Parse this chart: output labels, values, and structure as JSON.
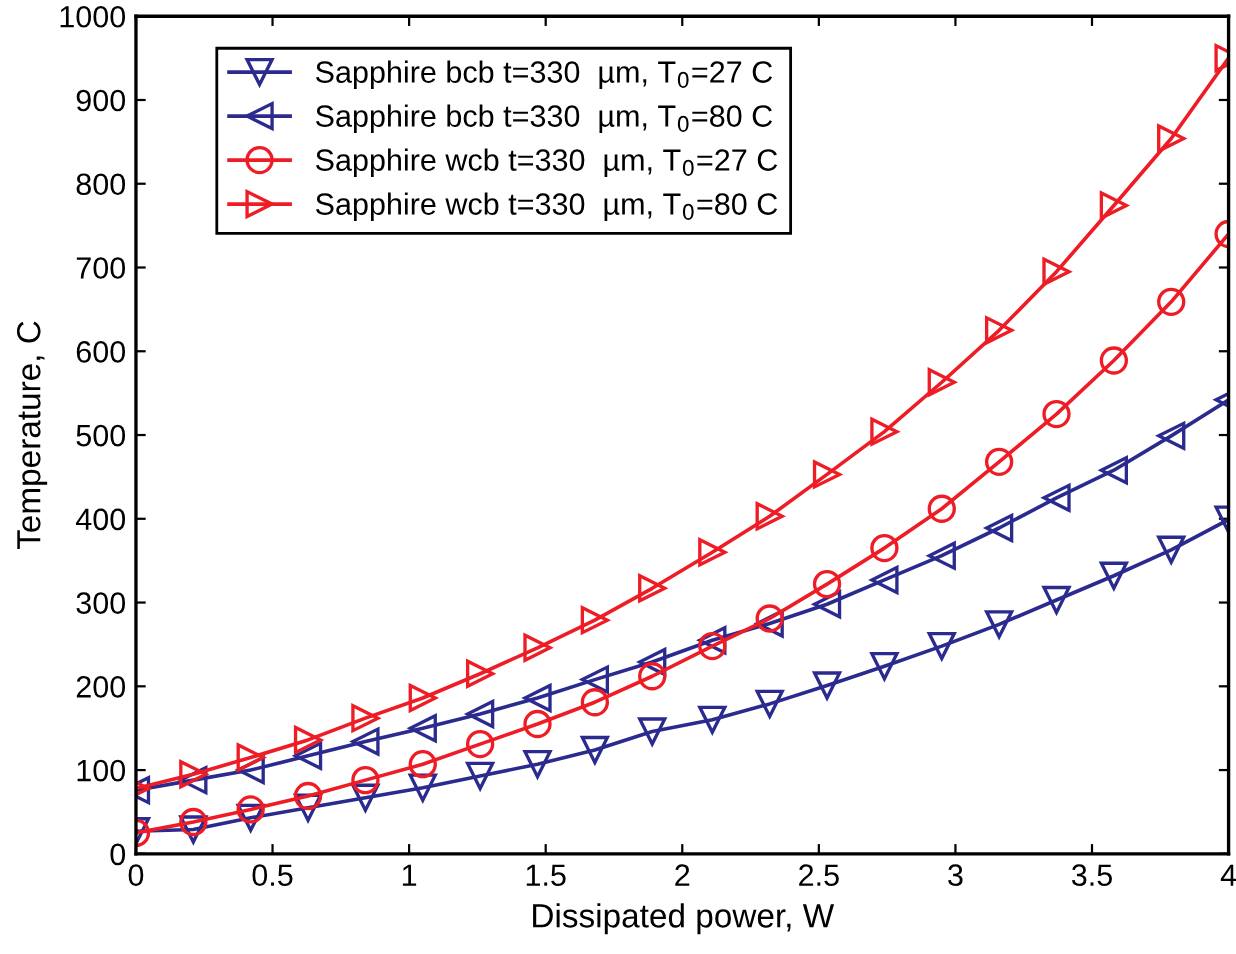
{
  "chart_data": {
    "type": "line",
    "xlabel": "Dissipated power, W",
    "ylabel": "Temperature, C",
    "x": [
      0,
      0.21,
      0.42,
      0.63,
      0.84,
      1.05,
      1.26,
      1.47,
      1.68,
      1.89,
      2.11,
      2.32,
      2.53,
      2.74,
      2.95,
      3.16,
      3.37,
      3.58,
      3.79,
      4
    ],
    "series": [
      {
        "name": "Sapphire bcb t=330  µm, T$_{0}$=27 C",
        "color": "#2b2b8f",
        "marker": "triangle_down",
        "values": [
          27,
          29,
          43,
          55,
          67,
          79,
          93,
          107,
          124,
          146,
          160,
          179,
          201,
          224,
          248,
          274,
          303,
          332,
          363,
          399
        ]
      },
      {
        "name": "Sapphire bcb t=330  µm, T$_{0}$=80 C",
        "color": "#2b2b8f",
        "marker": "triangle_left",
        "values": [
          76,
          88,
          100,
          117,
          134,
          150,
          167,
          186,
          208,
          229,
          255,
          275,
          298,
          327,
          356,
          389,
          425,
          458,
          499,
          542
        ]
      },
      {
        "name": "Sapphire wcb t=330  µm, T$_{0}$=27 C",
        "color": "#ee1c25",
        "marker": "circle",
        "values": [
          25,
          38,
          53,
          69,
          88,
          107,
          131,
          155,
          181,
          212,
          248,
          281,
          322,
          365,
          412,
          468,
          525,
          589,
          659,
          740
        ]
      },
      {
        "name": "Sapphire wcb t=330  µm, T$_{0}$=80 C",
        "color": "#ee1c25",
        "marker": "triangle_right",
        "values": [
          78,
          95,
          115,
          136,
          162,
          186,
          215,
          246,
          279,
          317,
          360,
          403,
          453,
          504,
          563,
          625,
          695,
          774,
          854,
          950
        ]
      }
    ],
    "xlim": [
      0,
      4
    ],
    "xticks": [
      0,
      0.5,
      1,
      1.5,
      2,
      2.5,
      3,
      3.5,
      4
    ],
    "ylim": [
      0,
      1000
    ],
    "yticks": [
      0,
      100,
      200,
      300,
      400,
      500,
      600,
      700,
      800,
      900,
      1000
    ],
    "grid": false,
    "legend": "top left",
    "line_style": "solid"
  }
}
